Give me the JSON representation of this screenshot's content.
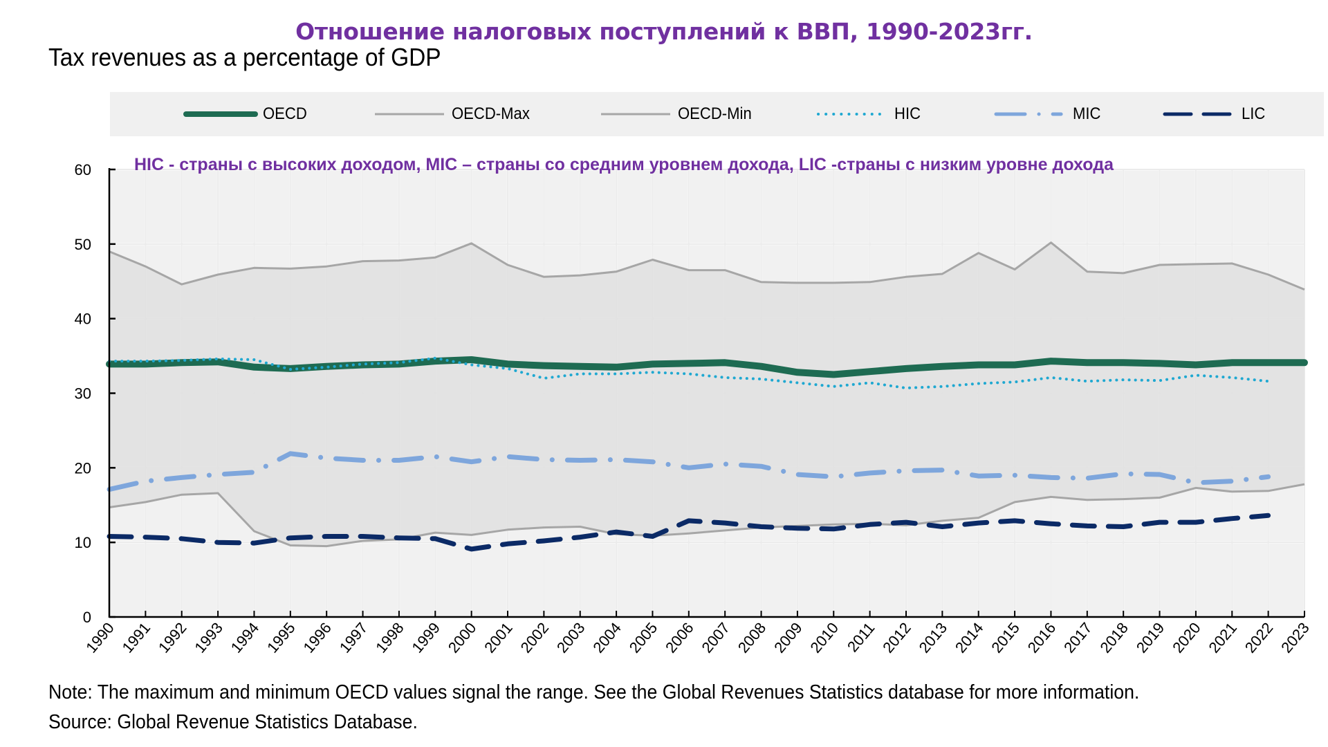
{
  "header": {
    "ru_title": "Отношение налоговых поступлений к ВВП, 1990-2023гг.",
    "en_title": "Tax revenues as a percentage of GDP",
    "subtitle": "HIC - страны с высоких доходом, MIC – страны со средним уровнем дохода, LIC -страны с низким уровне дохода"
  },
  "legend": [
    {
      "key": "OECD",
      "label": "OECD"
    },
    {
      "key": "OECD-Max",
      "label": "OECD-Max"
    },
    {
      "key": "OECD-Min",
      "label": "OECD-Min"
    },
    {
      "key": "HIC",
      "label": "HIC"
    },
    {
      "key": "MIC",
      "label": "MIC"
    },
    {
      "key": "LIC",
      "label": "LIC"
    }
  ],
  "colors": {
    "OECD": "#1e6b52",
    "OECD-Max": "#a6a6a6",
    "OECD-Min": "#a6a6a6",
    "HIC": "#1fa8d1",
    "MIC": "#7ea6dc",
    "LIC": "#0b2a66",
    "range_fill": "#e1e1e1",
    "plot_bg": "#f1f1f1",
    "accent_text": "#7030a0"
  },
  "footer": {
    "note": "Note: The maximum and minimum OECD values signal the range. See the Global Revenues Statistics database for more information.",
    "source": "Source: Global Revenue Statistics Database."
  },
  "chart_data": {
    "type": "line",
    "title": "Tax revenues as a percentage of GDP",
    "xlabel": "",
    "ylabel": "",
    "ylim": [
      0,
      60
    ],
    "yticks": [
      0,
      10,
      20,
      30,
      40,
      50,
      60
    ],
    "grid": true,
    "legend_position": "top",
    "x": [
      "1990",
      "1991",
      "1992",
      "1993",
      "1994",
      "1995",
      "1996",
      "1997",
      "1998",
      "1999",
      "2000",
      "2001",
      "2002",
      "2003",
      "2004",
      "2005",
      "2006",
      "2007",
      "2008",
      "2009",
      "2010",
      "2011",
      "2012",
      "2013",
      "2014",
      "2015",
      "2016",
      "2017",
      "2018",
      "2019",
      "2020",
      "2021",
      "2022",
      "2023"
    ],
    "series": [
      {
        "name": "OECD-Max",
        "style": "solid-thin",
        "values": [
          49.0,
          47.0,
          44.6,
          45.9,
          46.8,
          46.7,
          47.0,
          47.7,
          47.8,
          48.2,
          50.1,
          47.2,
          45.6,
          45.8,
          46.3,
          47.9,
          46.5,
          46.5,
          44.9,
          44.8,
          44.8,
          44.9,
          45.6,
          46.0,
          48.8,
          46.6,
          50.2,
          46.3,
          46.1,
          47.2,
          47.3,
          47.4,
          45.9,
          43.9
        ]
      },
      {
        "name": "OECD-Min",
        "style": "solid-thin",
        "values": [
          14.7,
          15.4,
          16.4,
          16.6,
          11.5,
          9.6,
          9.5,
          10.2,
          10.4,
          11.3,
          11.0,
          11.7,
          12.0,
          12.1,
          11.1,
          10.9,
          11.2,
          11.6,
          12.0,
          12.2,
          12.4,
          12.5,
          12.3,
          12.9,
          13.3,
          15.4,
          16.1,
          15.7,
          15.8,
          16.0,
          17.3,
          16.8,
          16.9,
          17.8
        ]
      },
      {
        "name": "OECD",
        "style": "solid-thick",
        "values": [
          33.9,
          33.9,
          34.1,
          34.2,
          33.5,
          33.3,
          33.6,
          33.8,
          33.9,
          34.3,
          34.5,
          33.9,
          33.7,
          33.6,
          33.5,
          33.9,
          34.0,
          34.1,
          33.6,
          32.8,
          32.5,
          32.9,
          33.3,
          33.6,
          33.8,
          33.8,
          34.3,
          34.1,
          34.1,
          34.0,
          33.8,
          34.1,
          34.1,
          34.1
        ]
      },
      {
        "name": "HIC",
        "style": "dotted",
        "values": [
          34.3,
          34.3,
          34.4,
          34.6,
          34.5,
          33.2,
          33.5,
          33.9,
          34.1,
          34.7,
          33.8,
          33.3,
          32.0,
          32.6,
          32.6,
          32.8,
          32.6,
          32.1,
          31.9,
          31.4,
          30.9,
          31.4,
          30.7,
          30.9,
          31.3,
          31.5,
          32.1,
          31.6,
          31.8,
          31.7,
          32.4,
          32.1,
          31.6,
          null
        ]
      },
      {
        "name": "MIC",
        "style": "dash-dot",
        "values": [
          17.1,
          18.2,
          18.7,
          19.1,
          19.4,
          21.9,
          21.3,
          21.0,
          21.0,
          21.5,
          20.8,
          21.5,
          21.1,
          21.0,
          21.1,
          20.8,
          20.0,
          20.5,
          20.2,
          19.1,
          18.8,
          19.3,
          19.6,
          19.7,
          18.9,
          19.0,
          18.7,
          18.6,
          19.2,
          19.1,
          18.0,
          18.2,
          18.8,
          null
        ]
      },
      {
        "name": "LIC",
        "style": "dashed",
        "values": [
          10.8,
          10.7,
          10.5,
          10.0,
          9.9,
          10.6,
          10.8,
          10.8,
          10.6,
          10.5,
          9.1,
          9.8,
          10.2,
          10.7,
          11.4,
          10.8,
          12.9,
          12.6,
          12.1,
          11.9,
          11.8,
          12.4,
          12.7,
          12.1,
          12.6,
          12.9,
          12.5,
          12.2,
          12.1,
          12.7,
          12.7,
          13.2,
          13.6,
          null
        ]
      }
    ]
  }
}
